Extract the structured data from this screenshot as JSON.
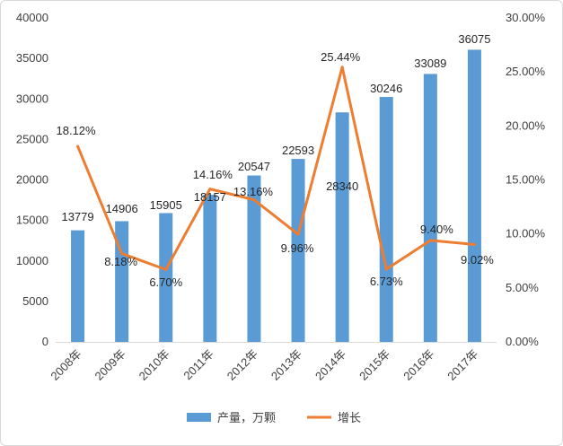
{
  "chart_data": {
    "type": "bar+line",
    "categories": [
      "2008年",
      "2009年",
      "2010年",
      "2011年",
      "2012年",
      "2013年",
      "2014年",
      "2015年",
      "2016年",
      "2017年"
    ],
    "series": [
      {
        "name": "产量，万颗",
        "type": "bar",
        "axis": "left",
        "color": "#5b9bd5",
        "values": [
          13779,
          14906,
          15905,
          18157,
          20547,
          22593,
          28340,
          30246,
          33089,
          36075
        ],
        "labels": [
          "13779",
          "14906",
          "15905",
          "18157",
          "20547",
          "22593",
          "28340",
          "30246",
          "33089",
          "36075"
        ]
      },
      {
        "name": "增长",
        "type": "line",
        "axis": "right",
        "color": "#ed7d31",
        "values": [
          18.12,
          8.18,
          6.7,
          14.16,
          13.16,
          9.96,
          25.44,
          6.73,
          9.4,
          9.02
        ],
        "labels": [
          "18.12%",
          "8.18%",
          "6.70%",
          "14.16%",
          "13.16%",
          "9.96%",
          "25.44%",
          "6.73%",
          "9.40%",
          "9.02%"
        ]
      }
    ],
    "y_left": {
      "ylim": [
        0,
        40000
      ],
      "ticks": [
        0,
        5000,
        10000,
        15000,
        20000,
        25000,
        30000,
        35000,
        40000
      ],
      "tick_labels": [
        "0",
        "5000",
        "10000",
        "15000",
        "20000",
        "25000",
        "30000",
        "35000",
        "40000"
      ]
    },
    "y_right": {
      "ylim": [
        0,
        30
      ],
      "ticks": [
        0,
        5,
        10,
        15,
        20,
        25,
        30
      ],
      "tick_labels": [
        "0.00%",
        "5.00%",
        "10.00%",
        "15.00%",
        "20.00%",
        "25.00%",
        "30.00%"
      ]
    },
    "grid": false,
    "legend": "bottom"
  }
}
